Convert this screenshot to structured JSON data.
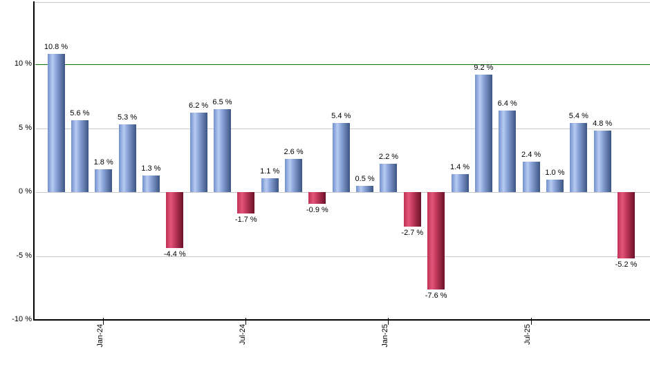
{
  "chart_data": {
    "type": "bar",
    "title": "",
    "xlabel": "",
    "ylabel": "",
    "legend": "none",
    "grid": true,
    "background_color": "#ffffff",
    "y_axis": {
      "range": [
        -10,
        14.9
      ],
      "ticks": [
        {
          "label": "10 %",
          "value": 10
        },
        {
          "label": "5 %",
          "value": 5
        },
        {
          "label": "0 %",
          "value": 0
        },
        {
          "label": "-5 %",
          "value": -5
        },
        {
          "label": "-10 %",
          "value": -10
        }
      ]
    },
    "x_axis": {
      "ticks": [
        {
          "label": "Jan-24",
          "bar_index": 2
        },
        {
          "label": "Jul-24",
          "bar_index": 8
        },
        {
          "label": "Jan-25",
          "bar_index": 14
        },
        {
          "label": "Jul-25",
          "bar_index": 20
        }
      ]
    },
    "threshold_line": {
      "value": 10,
      "color": "#077007"
    },
    "bars": [
      {
        "value": 10.8,
        "label": "10.8 %"
      },
      {
        "value": 5.6,
        "label": "5.6 %"
      },
      {
        "value": 1.8,
        "label": "1.8 %"
      },
      {
        "value": 5.3,
        "label": "5.3 %"
      },
      {
        "value": 1.3,
        "label": "1.3 %"
      },
      {
        "value": -4.4,
        "label": "-4.4 %"
      },
      {
        "value": 6.2,
        "label": "6.2 %"
      },
      {
        "value": 6.5,
        "label": "6.5 %"
      },
      {
        "value": -1.7,
        "label": "-1.7 %"
      },
      {
        "value": 1.1,
        "label": "1.1 %"
      },
      {
        "value": 2.6,
        "label": "2.6 %"
      },
      {
        "value": -0.9,
        "label": "-0.9 %"
      },
      {
        "value": 5.4,
        "label": "5.4 %"
      },
      {
        "value": 0.5,
        "label": "0.5 %"
      },
      {
        "value": 2.2,
        "label": "2.2 %"
      },
      {
        "value": -2.7,
        "label": "-2.7 %"
      },
      {
        "value": -7.6,
        "label": "-7.6 %"
      },
      {
        "value": 1.4,
        "label": "1.4 %"
      },
      {
        "value": 9.2,
        "label": "9.2 %"
      },
      {
        "value": 6.4,
        "label": "6.4 %"
      },
      {
        "value": 2.4,
        "label": "2.4 %"
      },
      {
        "value": 1.0,
        "label": "1.0 %"
      },
      {
        "value": 5.4,
        "label": "5.4 %"
      },
      {
        "value": 4.8,
        "label": "4.8 %"
      },
      {
        "value": -5.2,
        "label": "-5.2 %"
      }
    ],
    "colors": {
      "positive_bar_gradient": [
        "#7090cd",
        "#b9cbf1",
        "#8ca6dc",
        "#3d5583"
      ],
      "negative_bar_gradient": [
        "#c03055",
        "#e25679",
        "#c73c60",
        "#6c1128"
      ],
      "threshold_line": "#077007",
      "gridline": "#c8c8c8",
      "axis": "#000000",
      "label_text": "#000000"
    }
  }
}
